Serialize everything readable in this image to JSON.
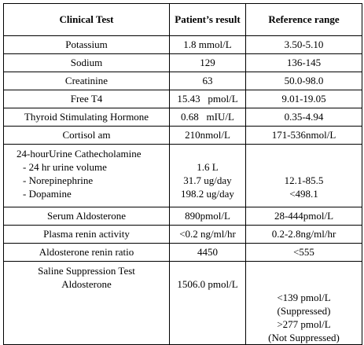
{
  "table": {
    "header": [
      "Clinical Test",
      "Patient’s result",
      "Reference range"
    ],
    "rows": [
      [
        "Potassium",
        "1.8 mmol/L",
        "3.50-5.10"
      ],
      [
        "Sodium",
        "129",
        "136-145"
      ],
      [
        "Creatinine",
        "63",
        "50.0-98.0"
      ],
      [
        "Free T4",
        "15.43   pmol/L",
        "9.01-19.05"
      ],
      [
        "Thyroid Stimulating Hormone",
        "0.68   mIU/L",
        "0.35-4.94"
      ],
      [
        "Cortisol am",
        "210nmol/L",
        "171-536nmol/L"
      ]
    ],
    "catecholamine": {
      "title": "24-hourUrine Cathecholamine",
      "items": [
        {
          "name": "- 24 hr urine volume",
          "result": "1.6 L"
        },
        {
          "name": "- Norepinephrine",
          "result": "31.7 ug/day",
          "reference": "12.1-85.5"
        },
        {
          "name": "- Dopamine",
          "result": "198.2 ug/day",
          "reference": "<498.1"
        }
      ]
    },
    "rows_after": [
      [
        "Serum Aldosterone",
        "890pmol/L",
        "28-444pmol/L"
      ],
      [
        "Plasma renin activity",
        "<0.2 ng/ml/hr",
        "0.2-2.8ng/ml/hr"
      ],
      [
        "Aldosterone renin ratio",
        "4450",
        "<555"
      ]
    ],
    "saline": {
      "test": [
        "Saline Suppression Test",
        "Aldosterone"
      ],
      "result": "1506.0 pmol/L",
      "reference": [
        "<139 pmol/L",
        "(Suppressed)",
        ">277 pmol/L",
        "(Not Suppressed)"
      ]
    }
  }
}
